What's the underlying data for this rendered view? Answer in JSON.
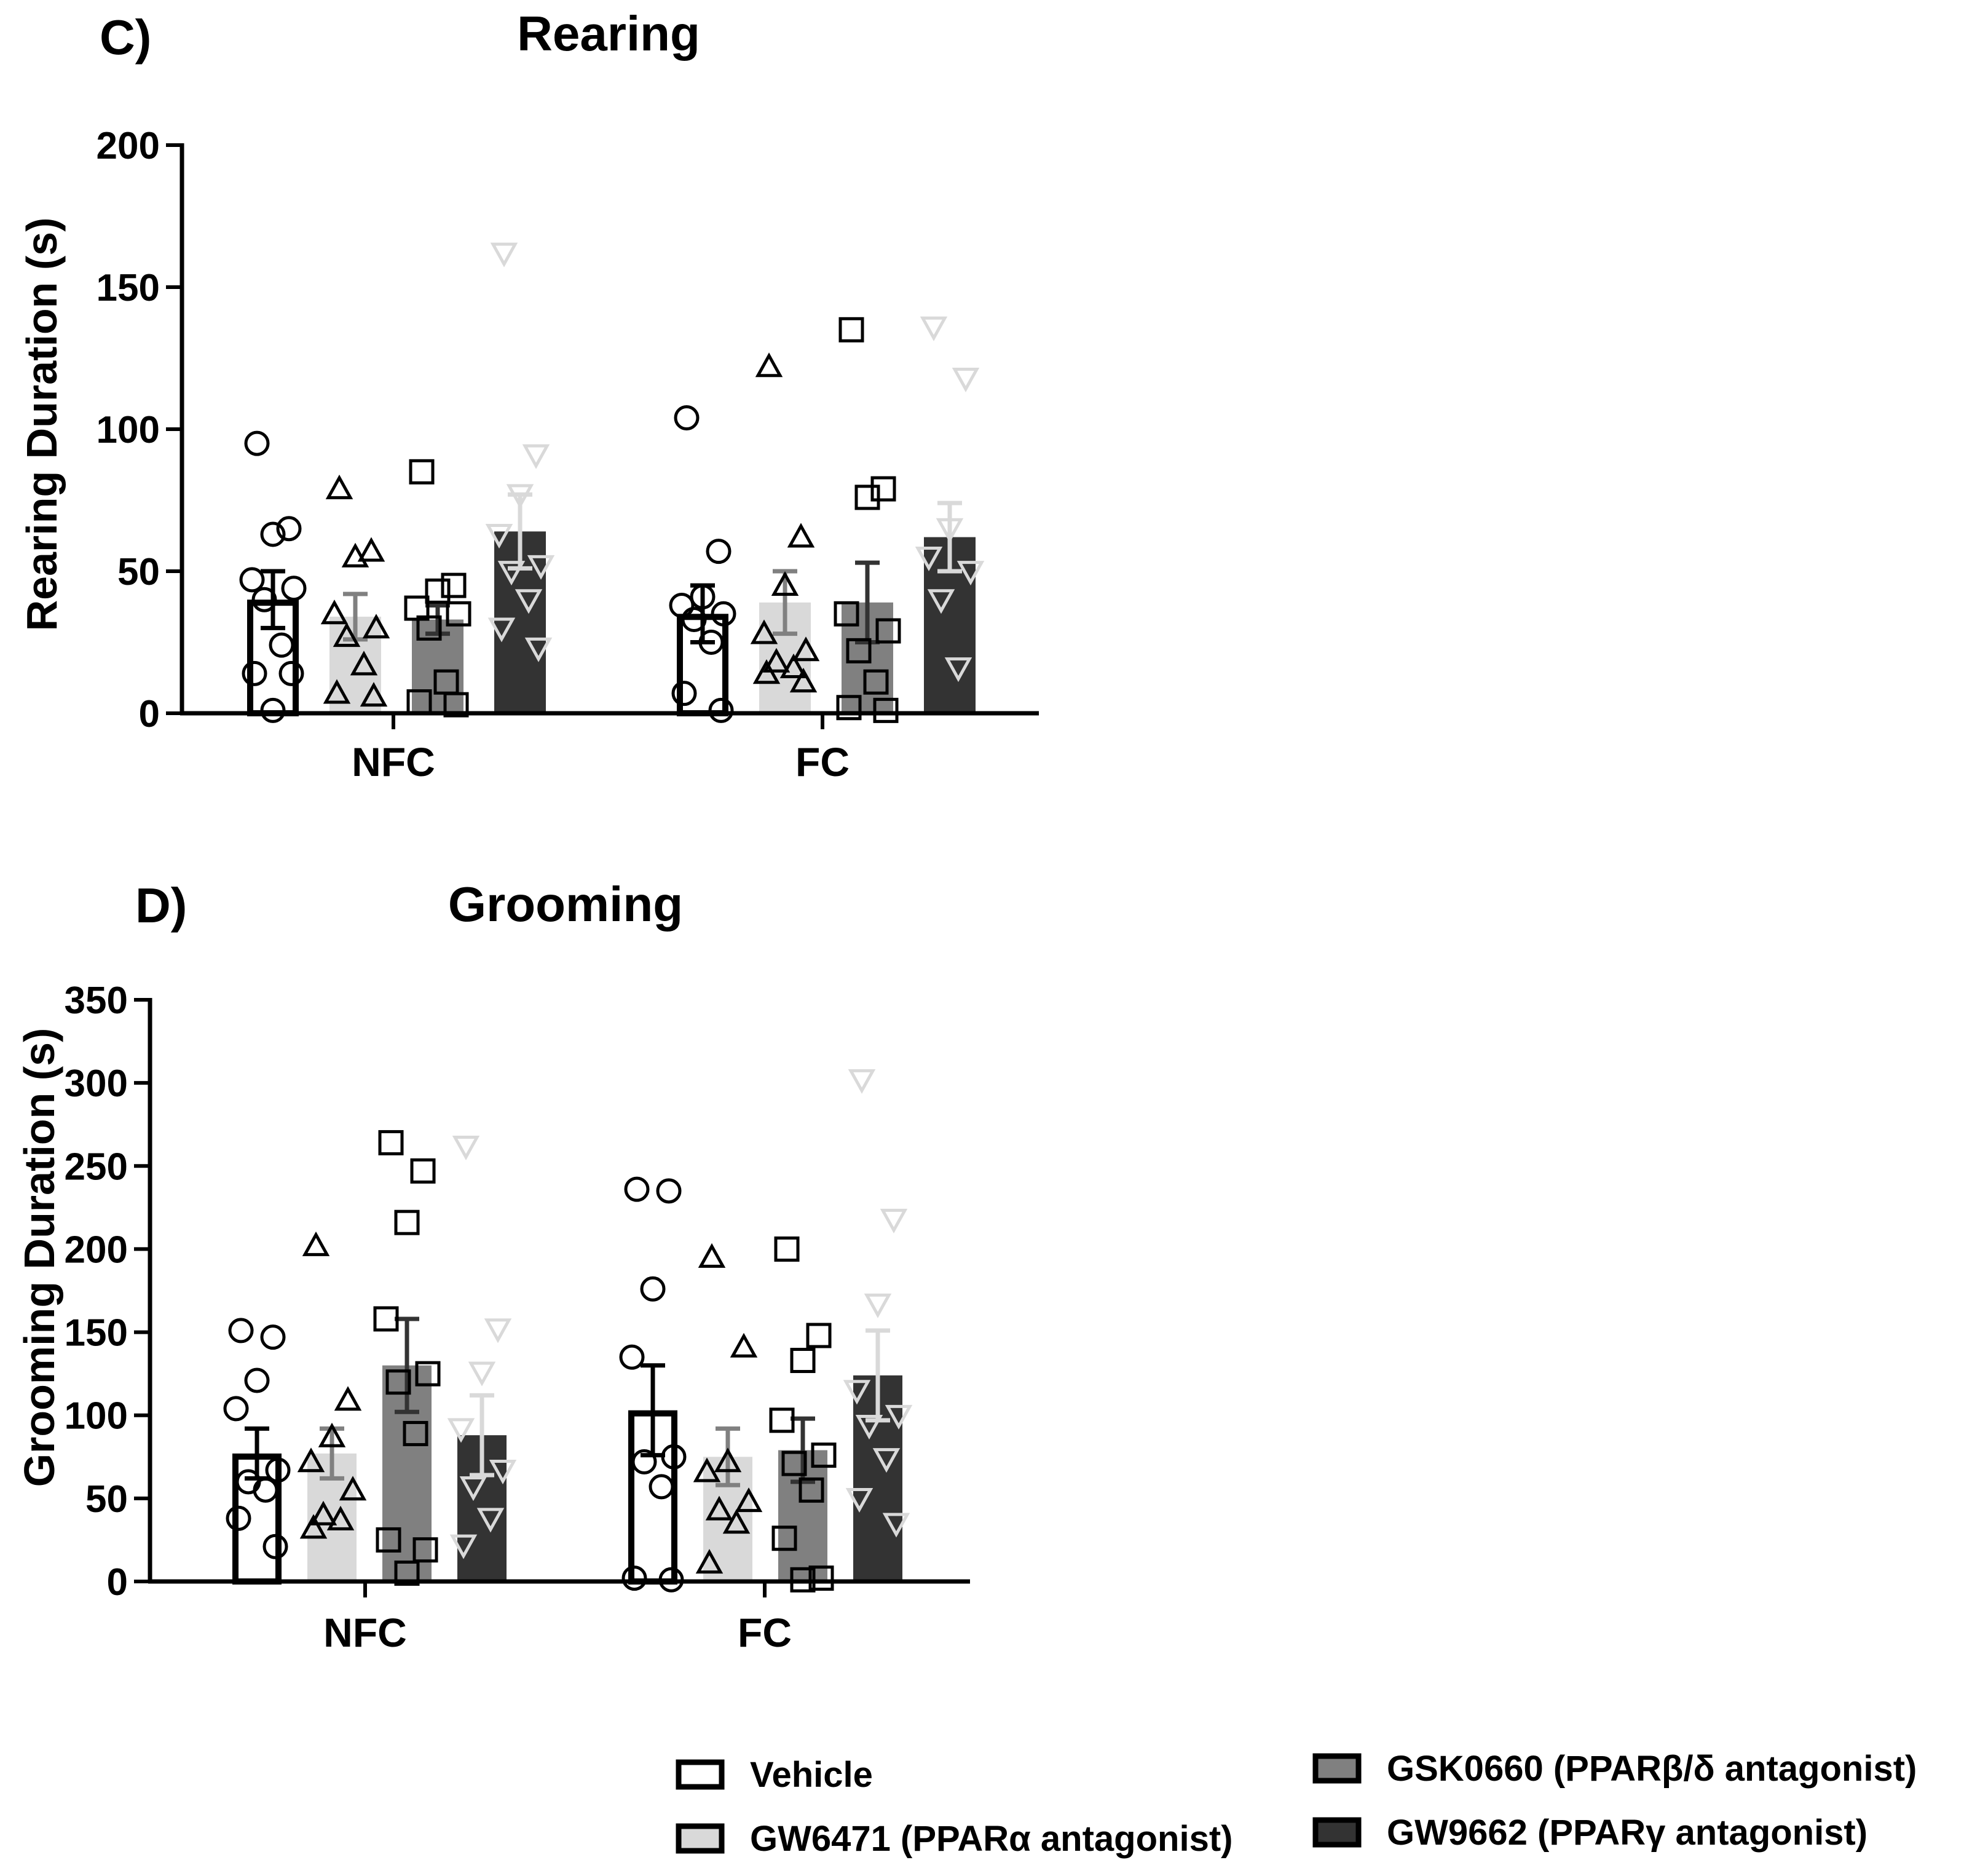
{
  "chart_data": [
    {
      "panel_label": "C)",
      "type": "bar",
      "title": "Rearing",
      "ylabel": "Rearing Duration (s)",
      "ylim": [
        0,
        200
      ],
      "yticks": [
        "0",
        "50",
        "100",
        "150",
        "200"
      ],
      "categories": [
        "NFC",
        "FC"
      ],
      "series": [
        {
          "name": "Vehicle",
          "values": [
            40,
            35
          ],
          "sem": [
            10,
            10
          ],
          "points": [
            [
              95,
              65,
              63,
              47,
              44,
              40,
              24,
              14,
              14,
              1
            ],
            [
              104,
              57,
              41,
              38,
              35,
              33,
              25,
              7,
              1
            ]
          ]
        },
        {
          "name": "GW6471 (PPARα antagonist)",
          "values": [
            34,
            39
          ],
          "sem": [
            8,
            11
          ],
          "points": [
            [
              79,
              57,
              55,
              35,
              30,
              27,
              17,
              7,
              6
            ],
            [
              122,
              62,
              45,
              28,
              22,
              18,
              16,
              14,
              11
            ]
          ]
        },
        {
          "name": "GSK0660 (PPARβ/δ antagonist)",
          "values": [
            33,
            39
          ],
          "sem": [
            5,
            14
          ],
          "points": [
            [
              85,
              45,
              43,
              37,
              35,
              30,
              11,
              4,
              3
            ],
            [
              135,
              79,
              76,
              35,
              29,
              22,
              11,
              2,
              1
            ]
          ]
        },
        {
          "name": "GW9662 (PPARγ antagonist)",
          "values": [
            64,
            62
          ],
          "sem": [
            13,
            12
          ],
          "points": [
            [
              162,
              91,
              77,
              63,
              52,
              50,
              40,
              30,
              23
            ],
            [
              136,
              118,
              65,
              55,
              50,
              40,
              16
            ]
          ]
        }
      ]
    },
    {
      "panel_label": "D)",
      "type": "bar",
      "title": "Grooming",
      "ylabel": "Grooming Duration (s)",
      "ylim": [
        0,
        350
      ],
      "yticks": [
        "0",
        "50",
        "100",
        "150",
        "200",
        "250",
        "300",
        "350"
      ],
      "categories": [
        "NFC",
        "FC"
      ],
      "series": [
        {
          "name": "Vehicle",
          "values": [
            77,
            103
          ],
          "sem": [
            15,
            27
          ],
          "points": [
            [
              151,
              147,
              121,
              104,
              67,
              60,
              55,
              38,
              21
            ],
            [
              236,
              235,
              176,
              135,
              75,
              72,
              57,
              2,
              1
            ]
          ]
        },
        {
          "name": "GW6471 (PPARα antagonist)",
          "values": [
            77,
            75
          ],
          "sem": [
            15,
            17
          ],
          "points": [
            [
              202,
              109,
              87,
              72,
              55,
              40,
              37,
              32
            ],
            [
              195,
              141,
              72,
              66,
              48,
              43,
              35,
              11
            ]
          ]
        },
        {
          "name": "GSK0660 (PPARβ/δ antagonist)",
          "values": [
            130,
            79
          ],
          "sem": [
            28,
            19
          ],
          "points": [
            [
              264,
              247,
              216,
              158,
              125,
              120,
              89,
              25,
              19,
              5
            ],
            [
              200,
              148,
              133,
              97,
              76,
              71,
              55,
              26,
              2,
              1
            ]
          ]
        },
        {
          "name": "GW9662 (PPARγ antagonist)",
          "values": [
            88,
            124
          ],
          "sem": [
            24,
            27
          ],
          "points": [
            [
              262,
              152,
              126,
              92,
              67,
              57,
              38,
              22
            ],
            [
              302,
              218,
              167,
              115,
              100,
              94,
              74,
              50,
              35
            ]
          ]
        }
      ]
    }
  ],
  "legend": [
    {
      "label": "Vehicle",
      "fill": "#ffffff",
      "stroke": "#000000"
    },
    {
      "label": "GW6471 (PPARα antagonist)",
      "fill": "#d9d9d9",
      "stroke": "#000000"
    },
    {
      "label": "GSK0660 (PPARβ/δ antagonist)",
      "fill": "#808080",
      "stroke": "#000000"
    },
    {
      "label": "GW9662 (PPARγ antagonist)",
      "fill": "#333333",
      "stroke": "#000000"
    }
  ],
  "colors": {
    "vehicle_fill": "#ffffff",
    "gw6471_fill": "#d9d9d9",
    "gsk0660_fill": "#808080",
    "gw9662_fill": "#333333",
    "axis": "#000000"
  },
  "markers": [
    "circle",
    "triangle-up",
    "square",
    "triangle-down"
  ]
}
